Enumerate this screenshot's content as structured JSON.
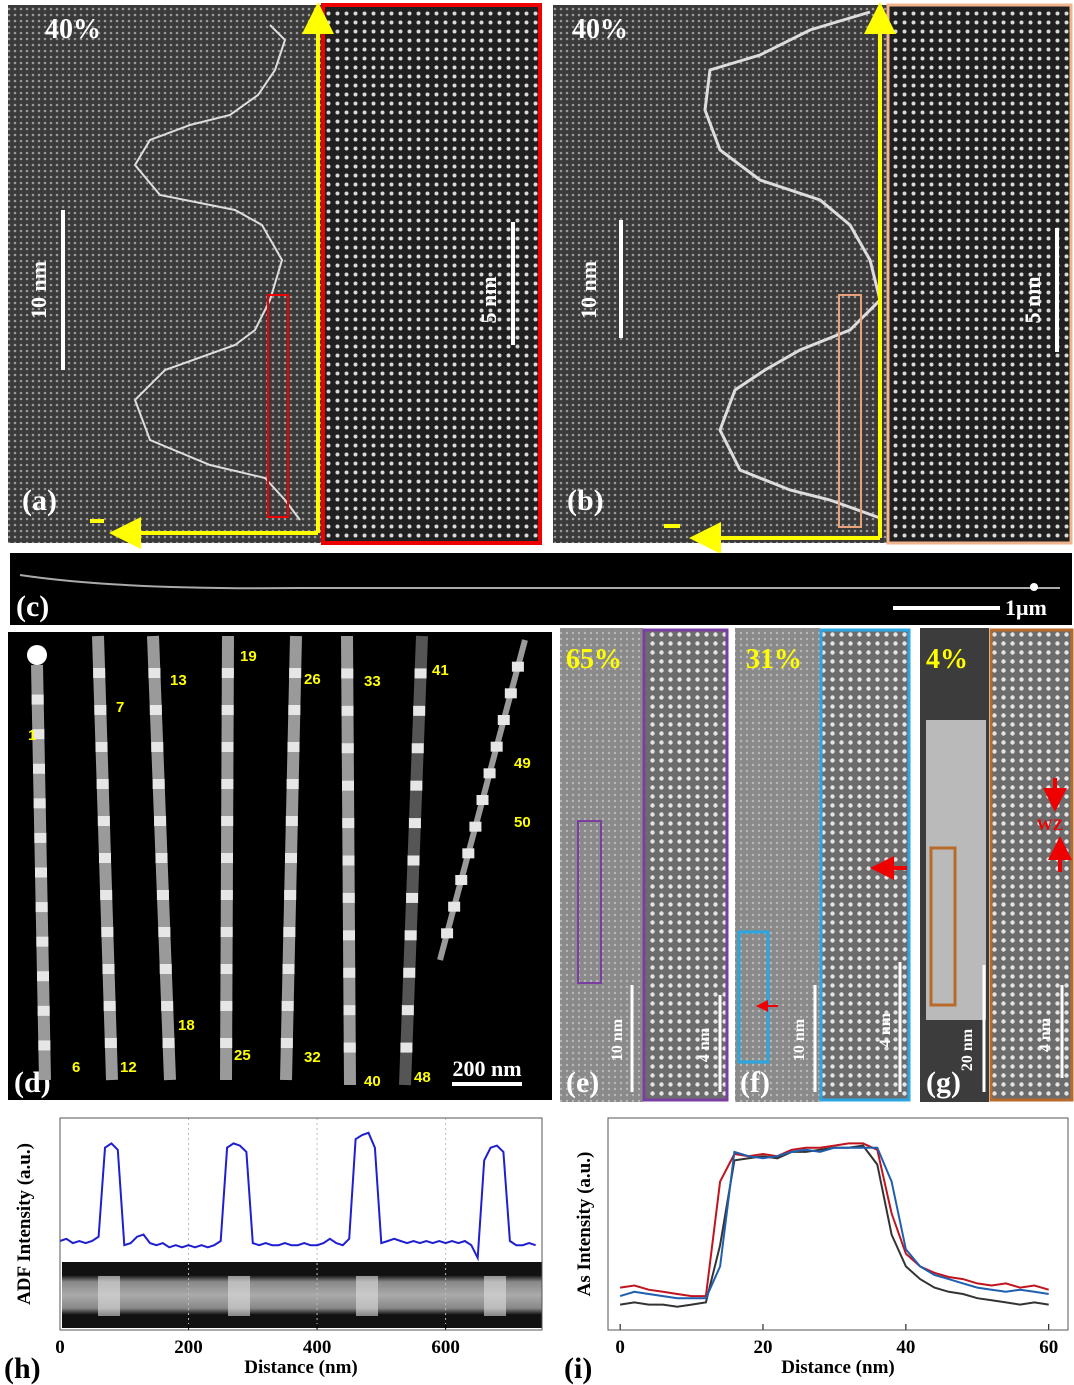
{
  "panels": {
    "a": {
      "label": "(a)",
      "composition": "40%",
      "scale_left": "10 nm",
      "scale_right": "5 nm"
    },
    "b": {
      "label": "(b)",
      "composition": "40%",
      "scale_left": "10 nm",
      "scale_right": "5 nm"
    },
    "c": {
      "label": "(c)",
      "scale": "1μm"
    },
    "d": {
      "label": "(d)",
      "scale": "200 nm",
      "wire_numbers": [
        1,
        6,
        7,
        12,
        13,
        18,
        19,
        25,
        26,
        32,
        33,
        40,
        41,
        48,
        49,
        50
      ]
    },
    "e": {
      "label": "(e)",
      "composition": "65%",
      "scale_left": "10 nm",
      "scale_right": "4 nm"
    },
    "f": {
      "label": "(f)",
      "composition": "31%",
      "scale_left": "10 nm",
      "scale_right": "4 nm"
    },
    "g": {
      "label": "(g)",
      "composition": "4%",
      "scale_left": "20 nm",
      "scale_right": "4 nm",
      "annotation": "WZ"
    },
    "h": {
      "label": "(h)"
    },
    "i": {
      "label": "(i)"
    }
  },
  "chart_data": [
    {
      "type": "line",
      "xlabel": "Distance (nm)",
      "ylabel": "ADF Intensity (a.u.)",
      "grid": true,
      "xlim": [
        0,
        750
      ],
      "xticks": [
        0,
        200,
        400,
        600
      ],
      "ylim": [
        0,
        1
      ],
      "x": [
        0,
        10,
        20,
        30,
        40,
        50,
        60,
        70,
        80,
        90,
        100,
        110,
        120,
        130,
        140,
        150,
        160,
        170,
        180,
        190,
        200,
        210,
        220,
        230,
        240,
        250,
        260,
        270,
        280,
        290,
        300,
        310,
        320,
        330,
        340,
        350,
        360,
        370,
        380,
        390,
        400,
        410,
        420,
        430,
        440,
        450,
        460,
        470,
        480,
        490,
        500,
        510,
        520,
        530,
        540,
        550,
        560,
        570,
        580,
        590,
        600,
        610,
        620,
        630,
        640,
        650,
        660,
        670,
        680,
        690,
        700,
        710,
        720,
        730,
        740
      ],
      "series": [
        {
          "color": "#1f1fd0",
          "values": [
            0.42,
            0.43,
            0.41,
            0.42,
            0.41,
            0.42,
            0.44,
            0.86,
            0.88,
            0.85,
            0.4,
            0.41,
            0.44,
            0.45,
            0.41,
            0.4,
            0.41,
            0.39,
            0.4,
            0.39,
            0.4,
            0.39,
            0.4,
            0.39,
            0.4,
            0.42,
            0.86,
            0.88,
            0.87,
            0.84,
            0.41,
            0.4,
            0.41,
            0.4,
            0.4,
            0.41,
            0.4,
            0.4,
            0.41,
            0.4,
            0.4,
            0.41,
            0.43,
            0.41,
            0.4,
            0.43,
            0.9,
            0.92,
            0.93,
            0.86,
            0.41,
            0.42,
            0.43,
            0.42,
            0.41,
            0.42,
            0.41,
            0.42,
            0.41,
            0.42,
            0.41,
            0.42,
            0.41,
            0.42,
            0.4,
            0.34,
            0.8,
            0.86,
            0.87,
            0.84,
            0.42,
            0.4,
            0.4,
            0.41,
            0.4
          ]
        }
      ]
    },
    {
      "type": "line",
      "xlabel": "Distance (nm)",
      "ylabel": "As Intensity (a.u.)",
      "grid": false,
      "xlim": [
        -1.7,
        62.7
      ],
      "xticks": [
        0,
        20,
        40,
        60
      ],
      "ylim": [
        0,
        1
      ],
      "x": [
        0,
        2,
        4,
        6,
        8,
        10,
        12,
        14,
        16,
        18,
        20,
        22,
        24,
        26,
        28,
        30,
        32,
        34,
        36,
        38,
        40,
        42,
        44,
        46,
        48,
        50,
        52,
        54,
        56,
        58,
        60
      ],
      "series": [
        {
          "color": "#333333",
          "values": [
            0.12,
            0.13,
            0.12,
            0.12,
            0.11,
            0.12,
            0.13,
            0.4,
            0.8,
            0.81,
            0.82,
            0.81,
            0.84,
            0.84,
            0.85,
            0.86,
            0.86,
            0.87,
            0.78,
            0.45,
            0.3,
            0.24,
            0.2,
            0.18,
            0.17,
            0.15,
            0.14,
            0.13,
            0.12,
            0.13,
            0.12
          ]
        },
        {
          "color": "#c0141e",
          "values": [
            0.2,
            0.21,
            0.19,
            0.18,
            0.17,
            0.16,
            0.16,
            0.7,
            0.83,
            0.82,
            0.83,
            0.82,
            0.85,
            0.86,
            0.86,
            0.87,
            0.88,
            0.88,
            0.85,
            0.55,
            0.36,
            0.3,
            0.27,
            0.25,
            0.24,
            0.22,
            0.21,
            0.22,
            0.2,
            0.21,
            0.19
          ]
        },
        {
          "color": "#1f5fb0",
          "values": [
            0.16,
            0.18,
            0.17,
            0.16,
            0.15,
            0.15,
            0.15,
            0.3,
            0.84,
            0.82,
            0.81,
            0.82,
            0.84,
            0.85,
            0.84,
            0.86,
            0.86,
            0.86,
            0.86,
            0.7,
            0.38,
            0.3,
            0.26,
            0.24,
            0.22,
            0.2,
            0.19,
            0.18,
            0.19,
            0.18,
            0.17
          ]
        }
      ]
    }
  ]
}
